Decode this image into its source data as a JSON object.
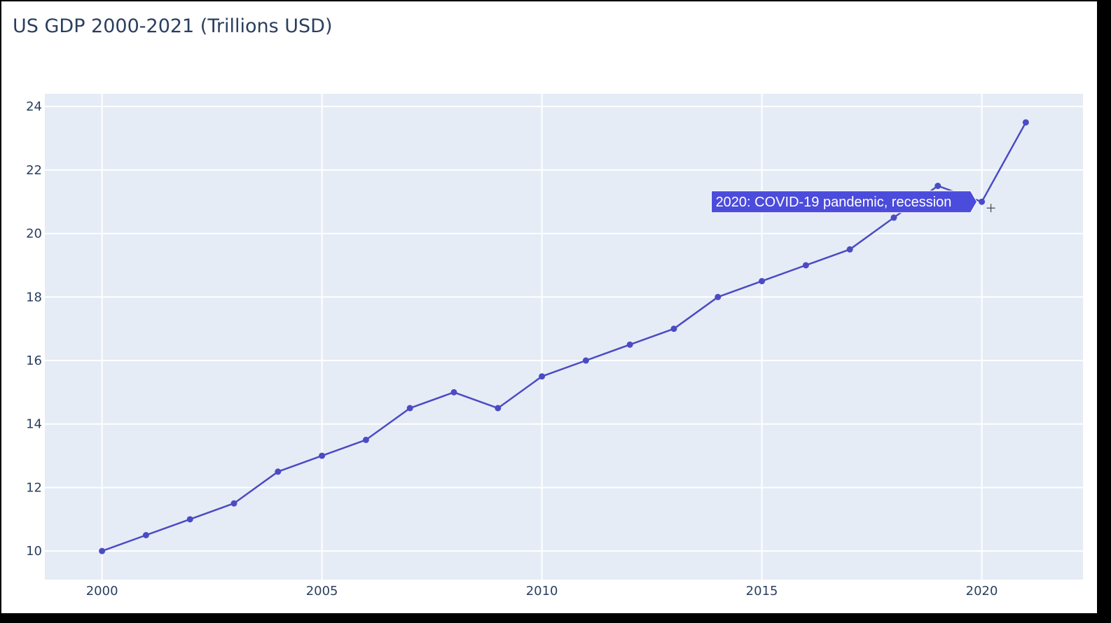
{
  "chart_data": {
    "type": "line",
    "title": "US GDP 2000-2021 (Trillions USD)",
    "xlabel": "",
    "ylabel": "",
    "x": [
      2000,
      2001,
      2002,
      2003,
      2004,
      2005,
      2006,
      2007,
      2008,
      2009,
      2010,
      2011,
      2012,
      2013,
      2014,
      2015,
      2016,
      2017,
      2018,
      2019,
      2020,
      2021
    ],
    "series": [
      {
        "values": [
          10,
          10.5,
          11,
          11.5,
          12.5,
          13,
          13.5,
          14.5,
          15,
          14.5,
          15.5,
          16,
          16.5,
          17,
          18,
          18.5,
          19,
          19.5,
          20.5,
          21.5,
          21,
          23.5
        ],
        "color": "#4b4bc4"
      }
    ],
    "xlim": [
      1998.7,
      2022.3
    ],
    "ylim": [
      9.1,
      24.4
    ],
    "x_ticks": [
      2000,
      2005,
      2010,
      2015,
      2020
    ],
    "y_ticks": [
      10,
      12,
      14,
      16,
      18,
      20,
      22,
      24
    ],
    "grid": true,
    "plot_background": "#e5ecf6",
    "hover_label": {
      "x": 2020,
      "text": "2020: COVID-19 pandemic, recession",
      "background": "#4b4bdc"
    }
  }
}
